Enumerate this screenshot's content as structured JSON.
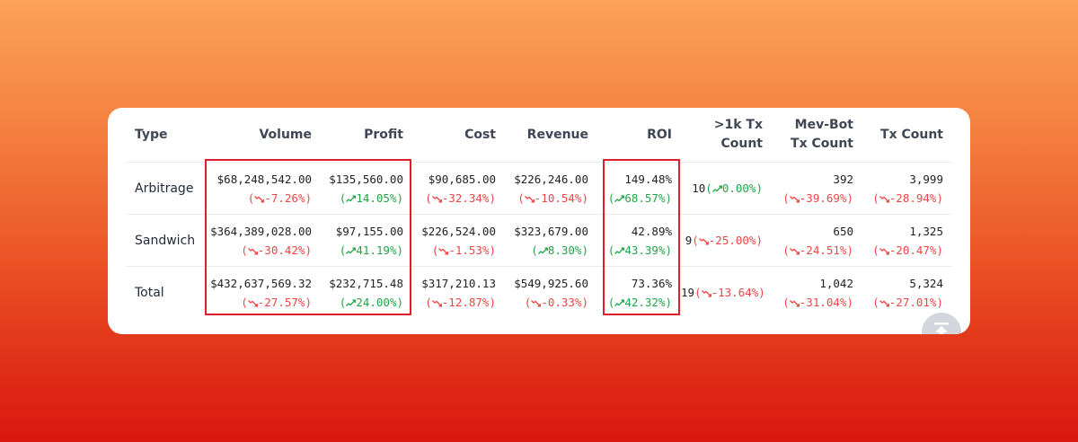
{
  "table": {
    "headers": {
      "type": "Type",
      "volume": "Volume",
      "profit": "Profit",
      "cost": "Cost",
      "revenue": "Revenue",
      "roi": "ROI",
      "tx1k_line1": ">1k Tx",
      "tx1k_line2": "Count",
      "mev_line1": "Mev-Bot",
      "mev_line2": "Tx Count",
      "txcount": "Tx Count"
    },
    "rows": [
      {
        "type": "Arbitrage",
        "volume": {
          "value": "$68,248,542.00",
          "change": "-7.26%",
          "dir": "down"
        },
        "profit": {
          "value": "$135,560.00",
          "change": "14.05%",
          "dir": "up"
        },
        "cost": {
          "value": "$90,685.00",
          "change": "-32.34%",
          "dir": "down"
        },
        "revenue": {
          "value": "$226,246.00",
          "change": "-10.54%",
          "dir": "down"
        },
        "roi": {
          "value": "149.48%",
          "change": "68.57%",
          "dir": "up"
        },
        "tx1k": {
          "value": "10",
          "change": "0.00%",
          "dir": "up"
        },
        "mev": {
          "value": "392",
          "change": "-39.69%",
          "dir": "down"
        },
        "txcount": {
          "value": "3,999",
          "change": "-28.94%",
          "dir": "down"
        }
      },
      {
        "type": "Sandwich",
        "volume": {
          "value": "$364,389,028.00",
          "change": "-30.42%",
          "dir": "down"
        },
        "profit": {
          "value": "$97,155.00",
          "change": "41.19%",
          "dir": "up"
        },
        "cost": {
          "value": "$226,524.00",
          "change": "-1.53%",
          "dir": "down"
        },
        "revenue": {
          "value": "$323,679.00",
          "change": "8.30%",
          "dir": "up"
        },
        "roi": {
          "value": "42.89%",
          "change": "43.39%",
          "dir": "up"
        },
        "tx1k": {
          "value": "9",
          "change": "-25.00%",
          "dir": "down"
        },
        "mev": {
          "value": "650",
          "change": "-24.51%",
          "dir": "down"
        },
        "txcount": {
          "value": "1,325",
          "change": "-20.47%",
          "dir": "down"
        }
      },
      {
        "type": "Total",
        "volume": {
          "value": "$432,637,569.32",
          "change": "-27.57%",
          "dir": "down"
        },
        "profit": {
          "value": "$232,715.48",
          "change": "24.00%",
          "dir": "up"
        },
        "cost": {
          "value": "$317,210.13",
          "change": "-12.87%",
          "dir": "down"
        },
        "revenue": {
          "value": "$549,925.60",
          "change": "-0.33%",
          "dir": "down"
        },
        "roi": {
          "value": "73.36%",
          "change": "42.32%",
          "dir": "up"
        },
        "tx1k": {
          "value": "19",
          "change": "-13.64%",
          "dir": "down"
        },
        "mev": {
          "value": "1,042",
          "change": "-31.04%",
          "dir": "down"
        },
        "txcount": {
          "value": "5,324",
          "change": "-27.01%",
          "dir": "down"
        }
      }
    ]
  },
  "colors": {
    "negative": "#ef4444",
    "positive": "#22a447",
    "highlight_box": "#e11d2a"
  },
  "icons": {
    "trend_down": "trend-down-icon",
    "trend_up": "trend-up-icon",
    "scroll_top": "scroll-to-top-icon"
  }
}
